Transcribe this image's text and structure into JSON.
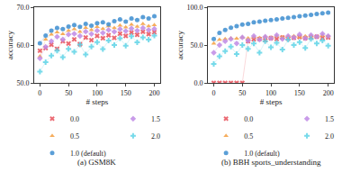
{
  "chart_data": [
    {
      "type": "scatter",
      "caption": "(a) GSM8K",
      "x_label": "# steps",
      "y_label": "accuracy",
      "xlim": [
        -10,
        210
      ],
      "xticks": [
        0,
        50,
        100,
        150,
        200
      ],
      "ylim": [
        50,
        70
      ],
      "yticks": [
        {
          "value": 50,
          "label": "50.0"
        },
        {
          "value": 60,
          "label": "60.0"
        },
        {
          "value": 70,
          "label": "70.0"
        }
      ],
      "grid": false,
      "x": [
        0,
        10,
        20,
        30,
        40,
        50,
        60,
        70,
        80,
        90,
        100,
        110,
        120,
        130,
        140,
        150,
        160,
        170,
        180,
        190,
        200
      ],
      "series": [
        {
          "name": "0.0",
          "color": "#e8505b",
          "marker": "x",
          "values": [
            58.5,
            59.2,
            60.1,
            59.0,
            61.0,
            60.4,
            61.5,
            60.2,
            62.0,
            61.3,
            62.4,
            61.8,
            62.6,
            61.9,
            63.0,
            62.4,
            63.3,
            62.7,
            63.5,
            62.9,
            63.4
          ]
        },
        {
          "name": "0.5",
          "color": "#f5a042",
          "marker": "triangle-up",
          "values": [
            57.0,
            61.5,
            62.8,
            63.4,
            62.9,
            63.8,
            64.2,
            63.5,
            64.6,
            64.0,
            64.8,
            64.3,
            65.0,
            64.5,
            65.2,
            64.7,
            65.4,
            64.9,
            65.6,
            65.0,
            65.3
          ]
        },
        {
          "name": "1.0 (default)",
          "color": "#3e8ed0",
          "marker": "circle",
          "values": [
            60.5,
            62.5,
            63.8,
            64.5,
            64.2,
            64.9,
            65.3,
            64.8,
            65.6,
            65.1,
            65.8,
            66.0,
            65.5,
            66.3,
            66.8,
            66.2,
            67.0,
            66.6,
            67.4,
            67.0,
            67.6
          ]
        },
        {
          "name": "1.5",
          "color": "#c08be5",
          "marker": "diamond",
          "values": [
            56.5,
            59.5,
            61.0,
            62.2,
            61.5,
            62.8,
            63.0,
            62.4,
            63.6,
            62.9,
            63.8,
            63.2,
            64.0,
            63.5,
            64.2,
            63.7,
            64.4,
            63.8,
            64.5,
            64.0,
            64.3
          ]
        },
        {
          "name": "2.0",
          "color": "#5fd3e6",
          "marker": "cross",
          "values": [
            53.0,
            55.5,
            57.2,
            58.5,
            56.8,
            59.0,
            58.2,
            60.1,
            57.5,
            59.6,
            60.8,
            58.9,
            61.2,
            60.0,
            61.8,
            59.8,
            62.3,
            60.7,
            62.0,
            61.4,
            62.5
          ]
        }
      ]
    },
    {
      "type": "scatter",
      "caption": "(b) BBH sports_understanding",
      "x_label": "# steps",
      "y_label": "accuracy",
      "xlim": [
        -10,
        210
      ],
      "xticks": [
        0,
        50,
        100,
        150,
        200
      ],
      "ylim": [
        0,
        100
      ],
      "yticks": [
        {
          "value": 0,
          "label": "0.0"
        },
        {
          "value": 50,
          "label": "50.0"
        },
        {
          "value": 100,
          "label": "100.0"
        }
      ],
      "grid": false,
      "x": [
        0,
        10,
        20,
        30,
        40,
        50,
        60,
        70,
        80,
        90,
        100,
        110,
        120,
        130,
        140,
        150,
        160,
        170,
        180,
        190,
        200
      ],
      "series": [
        {
          "name": "0.0",
          "color": "#e8505b",
          "marker": "x",
          "values": [
            0.0,
            0.0,
            0.0,
            0.0,
            0.0,
            0.0,
            55.0,
            57.5,
            58.0,
            56.5,
            59.0,
            58.0,
            60.0,
            58.5,
            59.5,
            60.5,
            59.0,
            60.0,
            61.0,
            59.5,
            60.0
          ]
        },
        {
          "name": "0.5",
          "color": "#f5a042",
          "marker": "triangle-up",
          "values": [
            52,
            57,
            58,
            59,
            58.5,
            60,
            59,
            60.5,
            59.5,
            61,
            60,
            61.5,
            60.5,
            61,
            62,
            60.5,
            61.5,
            62,
            61,
            62.5,
            61.5
          ]
        },
        {
          "name": "1.0 (default)",
          "color": "#3e8ed0",
          "marker": "circle",
          "values": [
            58,
            66,
            70,
            73,
            75,
            77,
            78,
            80,
            81,
            82,
            83,
            84,
            85,
            86,
            87,
            88,
            89,
            90,
            91,
            92,
            93
          ]
        },
        {
          "name": "1.5",
          "color": "#c08be5",
          "marker": "diamond",
          "values": [
            40,
            50,
            55,
            58,
            52,
            60,
            56,
            62,
            57,
            61,
            59,
            63,
            58,
            62,
            60,
            64,
            59,
            63,
            61,
            65,
            62
          ]
        },
        {
          "name": "2.0",
          "color": "#5fd3e6",
          "marker": "cross",
          "values": [
            25,
            35,
            42,
            48,
            38,
            50,
            45,
            52,
            40,
            55,
            47,
            53,
            44,
            57,
            50,
            54,
            46,
            58,
            52,
            56,
            49
          ]
        }
      ]
    }
  ]
}
